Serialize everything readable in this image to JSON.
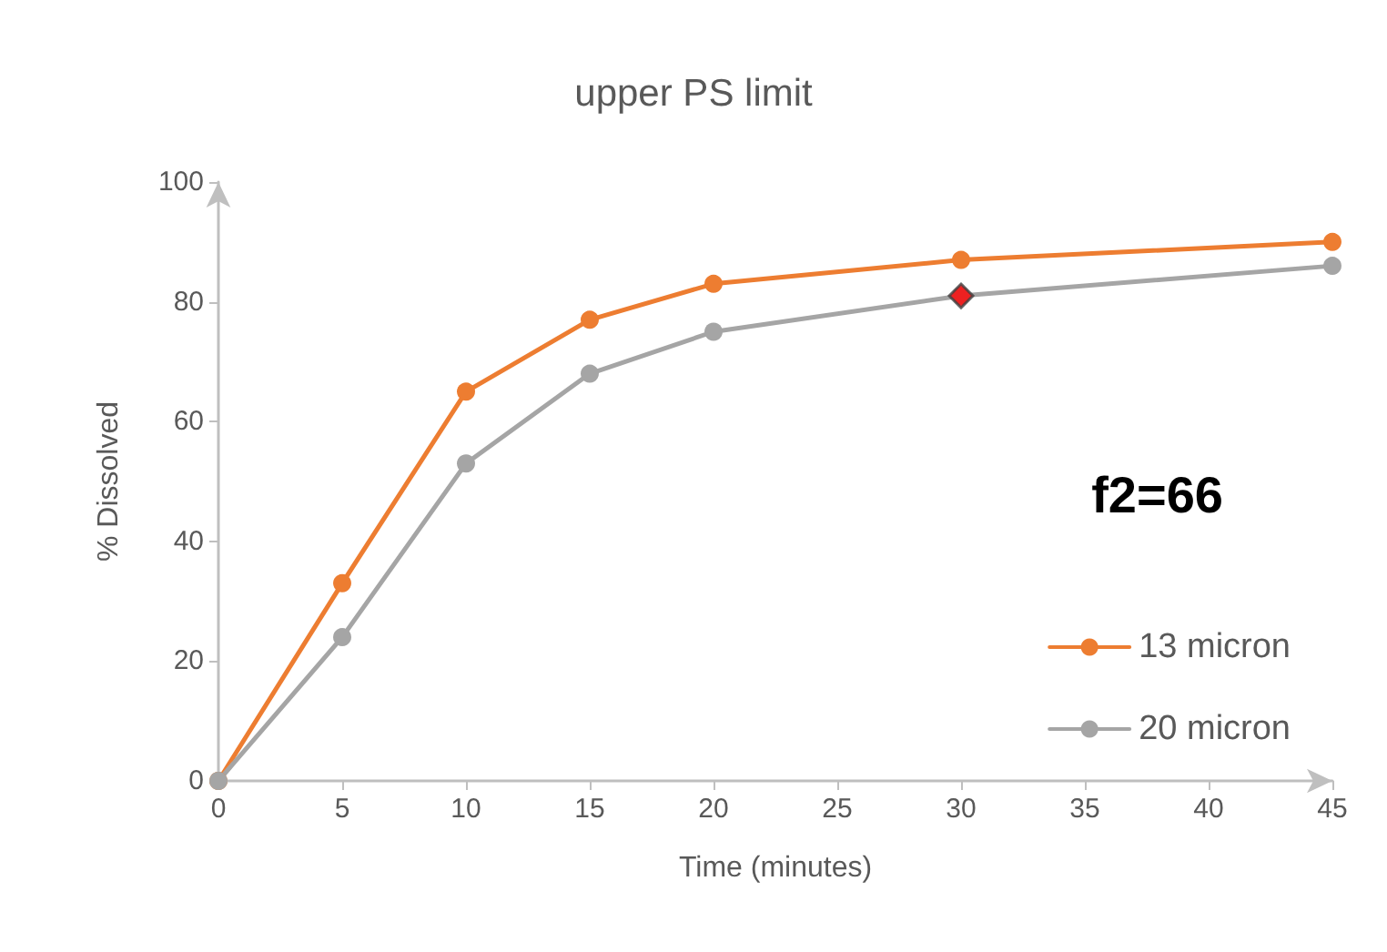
{
  "chart_data": {
    "type": "line",
    "title": "upper PS limit",
    "xlabel": "Time (minutes)",
    "ylabel": "% Dissolved",
    "x": [
      0,
      5,
      10,
      15,
      20,
      30,
      45
    ],
    "series": [
      {
        "name": "13 micron",
        "color": "#ed7d31",
        "values": [
          0,
          33,
          65,
          77,
          83,
          87,
          90
        ]
      },
      {
        "name": "20 micron",
        "color": "#a5a5a5",
        "values": [
          0,
          24,
          53,
          68,
          75,
          81,
          86
        ]
      },
      {
        "type": "scatter",
        "color": "#ff0000",
        "marker": "diamond",
        "x": [
          30
        ],
        "values": [
          81
        ]
      }
    ],
    "xlim": [
      0,
      45
    ],
    "xticks": [
      0,
      5,
      10,
      15,
      20,
      25,
      30,
      35,
      40,
      45
    ],
    "ylim": [
      0,
      100
    ],
    "yticks": [
      0,
      20,
      40,
      60,
      80,
      100
    ],
    "grid": false,
    "legend": "bottom right",
    "marker": "circle",
    "annotations": [
      "f2=66"
    ]
  }
}
